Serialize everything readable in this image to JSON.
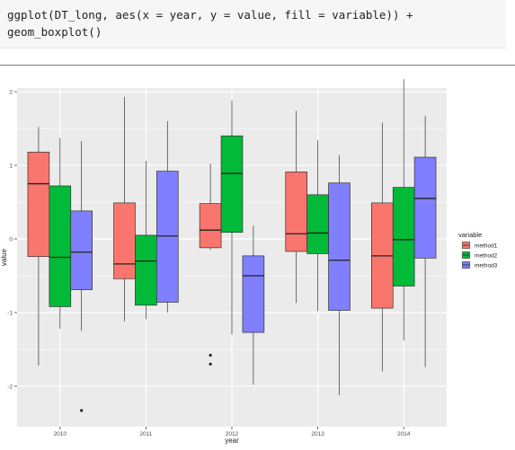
{
  "code": {
    "line1": "ggplot(DT_long, aes(x = year, y = value, fill = variable)) +",
    "line2": "geom_boxplot()"
  },
  "colors": {
    "method1": "#F8766D",
    "method2": "#00BA38",
    "method3": "#7F7FFF",
    "panel_bg": "#EBEBEB",
    "grid": "#FFFFFF"
  },
  "chart_data": {
    "type": "boxplot",
    "xlabel": "year",
    "ylabel": "value",
    "legend_title": "variable",
    "legend_position": "right",
    "grid": true,
    "ylim": [
      -2.55,
      2.05
    ],
    "yticks": [
      -2,
      -1,
      0,
      1,
      2
    ],
    "categories": [
      "2010",
      "2011",
      "2012",
      "2013",
      "2014"
    ],
    "series": [
      {
        "name": "method1",
        "boxes": [
          {
            "min": -1.72,
            "q1": -0.24,
            "median": 0.75,
            "q3": 1.18,
            "max": 1.52,
            "outliers": []
          },
          {
            "min": -1.12,
            "q1": -0.54,
            "median": -0.34,
            "q3": 0.49,
            "max": 1.93,
            "outliers": []
          },
          {
            "min": -0.15,
            "q1": -0.12,
            "median": 0.12,
            "q3": 0.48,
            "max": 1.02,
            "outliers": [
              -1.58,
              -1.7
            ]
          },
          {
            "min": -0.87,
            "q1": -0.17,
            "median": 0.07,
            "q3": 0.91,
            "max": 1.74,
            "outliers": []
          },
          {
            "min": -1.8,
            "q1": -0.94,
            "median": -0.23,
            "q3": 0.49,
            "max": 1.58,
            "outliers": []
          }
        ]
      },
      {
        "name": "method2",
        "boxes": [
          {
            "min": -1.22,
            "q1": -0.92,
            "median": -0.25,
            "q3": 0.72,
            "max": 1.37,
            "outliers": []
          },
          {
            "min": -1.09,
            "q1": -0.9,
            "median": -0.3,
            "q3": 0.05,
            "max": 1.06,
            "outliers": []
          },
          {
            "min": -1.3,
            "q1": 0.09,
            "median": 0.89,
            "q3": 1.4,
            "max": 1.88,
            "outliers": []
          },
          {
            "min": -0.98,
            "q1": -0.2,
            "median": 0.08,
            "q3": 0.6,
            "max": 1.34,
            "outliers": []
          },
          {
            "min": -1.38,
            "q1": -0.64,
            "median": -0.01,
            "q3": 0.7,
            "max": 2.17,
            "outliers": []
          }
        ]
      },
      {
        "name": "method3",
        "boxes": [
          {
            "min": -1.25,
            "q1": -0.69,
            "median": -0.18,
            "q3": 0.38,
            "max": 1.33,
            "outliers": [
              -2.33
            ]
          },
          {
            "min": -1.0,
            "q1": -0.86,
            "median": 0.04,
            "q3": 0.92,
            "max": 1.6,
            "outliers": []
          },
          {
            "min": -1.98,
            "q1": -1.27,
            "median": -0.5,
            "q3": -0.23,
            "max": 0.18,
            "outliers": []
          },
          {
            "min": -2.12,
            "q1": -0.97,
            "median": -0.29,
            "q3": 0.76,
            "max": 1.14,
            "outliers": []
          },
          {
            "min": -1.74,
            "q1": -0.26,
            "median": 0.55,
            "q3": 1.11,
            "max": 1.67,
            "outliers": []
          }
        ]
      }
    ]
  }
}
